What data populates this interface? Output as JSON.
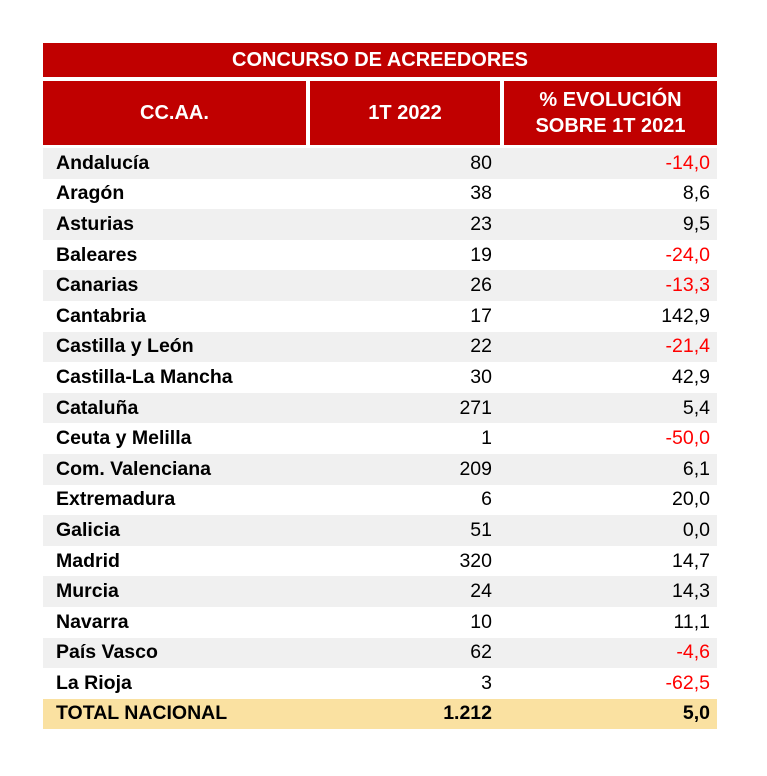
{
  "table": {
    "title": "CONCURSO DE ACREEDORES",
    "header": {
      "col1": "CC.AA.",
      "col2": "1T 2022",
      "col3_line1": "% EVOLUCIÓN",
      "col3_line2": "SOBRE 1T 2021"
    },
    "rows": [
      {
        "name": "Andalucía",
        "value": "80",
        "evolution": "-14,0"
      },
      {
        "name": "Aragón",
        "value": "38",
        "evolution": "8,6"
      },
      {
        "name": "Asturias",
        "value": "23",
        "evolution": "9,5"
      },
      {
        "name": "Baleares",
        "value": "19",
        "evolution": "-24,0"
      },
      {
        "name": "Canarias",
        "value": "26",
        "evolution": "-13,3"
      },
      {
        "name": "Cantabria",
        "value": "17",
        "evolution": "142,9"
      },
      {
        "name": "Castilla y León",
        "value": "22",
        "evolution": "-21,4"
      },
      {
        "name": "Castilla-La Mancha",
        "value": "30",
        "evolution": "42,9"
      },
      {
        "name": "Cataluña",
        "value": "271",
        "evolution": "5,4"
      },
      {
        "name": "Ceuta y Melilla",
        "value": "1",
        "evolution": "-50,0"
      },
      {
        "name": "Com. Valenciana",
        "value": "209",
        "evolution": "6,1"
      },
      {
        "name": "Extremadura",
        "value": "6",
        "evolution": "20,0"
      },
      {
        "name": "Galicia",
        "value": "51",
        "evolution": "0,0"
      },
      {
        "name": "Madrid",
        "value": "320",
        "evolution": "14,7"
      },
      {
        "name": "Murcia",
        "value": "24",
        "evolution": "14,3"
      },
      {
        "name": "Navarra",
        "value": "10",
        "evolution": "11,1"
      },
      {
        "name": "País Vasco",
        "value": "62",
        "evolution": "-4,6"
      },
      {
        "name": "La Rioja",
        "value": "3",
        "evolution": "-62,5"
      }
    ],
    "total": {
      "name": "TOTAL NACIONAL",
      "value": "1.212",
      "evolution": "5,0"
    }
  },
  "colors": {
    "header_red": "#C00000",
    "negative_red": "#FF0000",
    "stripe_gray": "#F0F0F0",
    "total_bg": "#FAE1A1",
    "text_black": "#000000",
    "header_text": "#FFFFFF"
  },
  "chart_data": {
    "type": "table",
    "title": "CONCURSO DE ACREEDORES",
    "columns": [
      "CC.AA.",
      "1T 2022",
      "% EVOLUCIÓN SOBRE 1T 2021"
    ],
    "categories": [
      "Andalucía",
      "Aragón",
      "Asturias",
      "Baleares",
      "Canarias",
      "Cantabria",
      "Castilla y León",
      "Castilla-La Mancha",
      "Cataluña",
      "Ceuta y Melilla",
      "Com. Valenciana",
      "Extremadura",
      "Galicia",
      "Madrid",
      "Murcia",
      "Navarra",
      "País Vasco",
      "La Rioja"
    ],
    "series": [
      {
        "name": "1T 2022",
        "values": [
          80,
          38,
          23,
          19,
          26,
          17,
          22,
          30,
          271,
          1,
          209,
          6,
          51,
          320,
          24,
          10,
          62,
          3
        ]
      },
      {
        "name": "% evolución sobre 1T 2021",
        "values": [
          -14.0,
          8.6,
          9.5,
          -24.0,
          -13.3,
          142.9,
          -21.4,
          42.9,
          5.4,
          -50.0,
          6.1,
          20.0,
          0.0,
          14.7,
          14.3,
          11.1,
          -4.6,
          -62.5
        ]
      }
    ],
    "total": {
      "label": "TOTAL NACIONAL",
      "value_1t_2022": 1212,
      "evolution_pct": 5.0
    },
    "notes": "Negative evolution percentages rendered in red; decimal comma formatting; alternating row shading; total row highlighted tan"
  }
}
